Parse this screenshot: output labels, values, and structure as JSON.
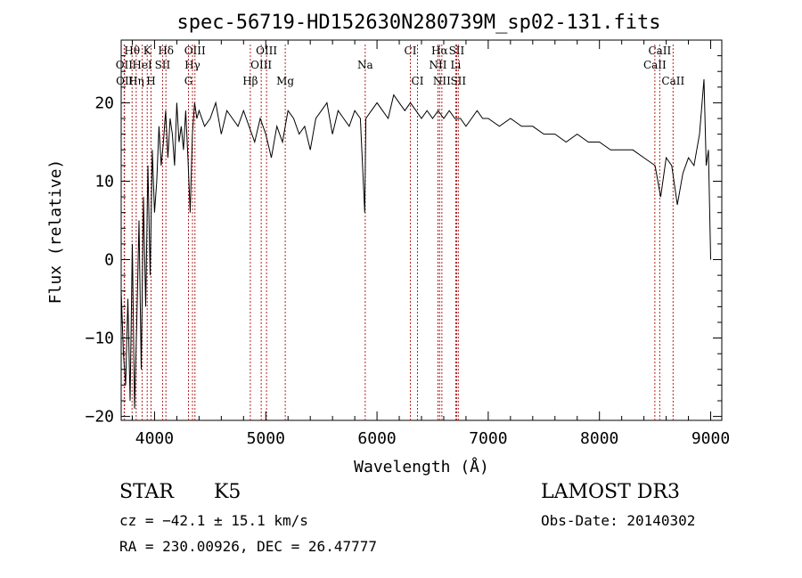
{
  "chart_data": {
    "type": "line",
    "title": "spec-56719-HD152630N280739M_sp02-131.fits",
    "xlabel": "Wavelength (Å)",
    "ylabel": "Flux (relative)",
    "xlim": [
      3700,
      9100
    ],
    "ylim": [
      -20.5,
      28
    ],
    "x_ticks": [
      4000,
      5000,
      6000,
      7000,
      8000,
      9000
    ],
    "y_ticks": [
      -20,
      -10,
      0,
      10,
      20
    ],
    "grid": false,
    "line_color": "#000000",
    "marker_color": "#b22222",
    "series": [
      {
        "x": [
          3700,
          3720,
          3740,
          3760,
          3780,
          3800,
          3820,
          3840,
          3860,
          3880,
          3900,
          3920,
          3940,
          3960,
          3980,
          4000,
          4020,
          4040,
          4060,
          4080,
          4100,
          4120,
          4140,
          4160,
          4180,
          4200,
          4220,
          4240,
          4260,
          4280,
          4300,
          4320,
          4340,
          4360,
          4380,
          4400,
          4450,
          4500,
          4550,
          4600,
          4650,
          4700,
          4750,
          4800,
          4850,
          4900,
          4950,
          5000,
          5050,
          5100,
          5150,
          5200,
          5250,
          5300,
          5350,
          5400,
          5450,
          5500,
          5550,
          5600,
          5650,
          5700,
          5750,
          5800,
          5850,
          5890,
          5900,
          5950,
          6000,
          6050,
          6100,
          6150,
          6200,
          6250,
          6300,
          6350,
          6400,
          6450,
          6500,
          6550,
          6600,
          6650,
          6700,
          6750,
          6800,
          6850,
          6900,
          6950,
          7000,
          7100,
          7200,
          7300,
          7400,
          7500,
          7600,
          7700,
          7800,
          7900,
          8000,
          8100,
          8200,
          8300,
          8400,
          8500,
          8550,
          8600,
          8650,
          8700,
          8750,
          8800,
          8850,
          8900,
          8940,
          8960,
          8980,
          9000
        ],
        "y": [
          -4,
          -12,
          -16,
          -5,
          -18,
          2,
          -19,
          -8,
          5,
          -14,
          8,
          -6,
          12,
          -2,
          14,
          6,
          10,
          17,
          12,
          15,
          19,
          13,
          18,
          16,
          12,
          20,
          15,
          17,
          14,
          19,
          13,
          6,
          16,
          20,
          18,
          19,
          17,
          18,
          20,
          16,
          19,
          18,
          17,
          19,
          17,
          15,
          18,
          16,
          13,
          17,
          15,
          19,
          18,
          16,
          17,
          14,
          18,
          19,
          20,
          16,
          19,
          18,
          17,
          19,
          18,
          6,
          18,
          19,
          20,
          19,
          18,
          21,
          20,
          19,
          20,
          19,
          18,
          19,
          18,
          19,
          18,
          19,
          18,
          18,
          17,
          18,
          19,
          18,
          18,
          17,
          18,
          17,
          17,
          16,
          16,
          15,
          16,
          15,
          15,
          14,
          14,
          14,
          13,
          12,
          8,
          13,
          12,
          7,
          11,
          13,
          12,
          16,
          23,
          12,
          14,
          0
        ]
      }
    ],
    "line_markers": [
      {
        "label": "Hθ",
        "x": 3798,
        "row": 1
      },
      {
        "label": "K",
        "x": 3934,
        "row": 1
      },
      {
        "label": "Hδ",
        "x": 4102,
        "row": 1
      },
      {
        "label": "OII",
        "x": 3727,
        "row": 2
      },
      {
        "label": "HeI",
        "x": 3889,
        "row": 2
      },
      {
        "label": "SII",
        "x": 4072,
        "row": 2
      },
      {
        "label": "OII",
        "x": 3730,
        "row": 3
      },
      {
        "label": "Hη",
        "x": 3835,
        "row": 3
      },
      {
        "label": "H",
        "x": 3968,
        "row": 3
      },
      {
        "label": "OIII",
        "x": 4363,
        "row": 1
      },
      {
        "label": "Hγ",
        "x": 4341,
        "row": 2
      },
      {
        "label": "G",
        "x": 4305,
        "row": 3
      },
      {
        "label": "Hβ",
        "x": 4861,
        "row": 3
      },
      {
        "label": "OIII",
        "x": 5007,
        "row": 1
      },
      {
        "label": "OIII",
        "x": 4959,
        "row": 2
      },
      {
        "label": "Mg",
        "x": 5175,
        "row": 3
      },
      {
        "label": "Na",
        "x": 5894,
        "row": 2
      },
      {
        "label": "CI",
        "x": 6300,
        "row": 1
      },
      {
        "label": "CI",
        "x": 6364,
        "row": 3
      },
      {
        "label": "Hα",
        "x": 6563,
        "row": 1
      },
      {
        "label": "SII",
        "x": 6716,
        "row": 1
      },
      {
        "label": "NII",
        "x": 6548,
        "row": 2
      },
      {
        "label": "Li",
        "x": 6708,
        "row": 2
      },
      {
        "label": "NII",
        "x": 6583,
        "row": 3
      },
      {
        "label": "SII",
        "x": 6731,
        "row": 3
      },
      {
        "label": "CaII",
        "x": 8542,
        "row": 1
      },
      {
        "label": "CaII",
        "x": 8498,
        "row": 2
      },
      {
        "label": "CaII",
        "x": 8662,
        "row": 3
      }
    ]
  },
  "info": {
    "object_class": "STAR",
    "subclass": "K5",
    "survey": "LAMOST DR3",
    "cz": "cz = −42.1 ± 15.1 km/s",
    "obs_date": "Obs-Date: 20140302",
    "coords": "RA = 230.00926, DEC =  26.47777"
  }
}
